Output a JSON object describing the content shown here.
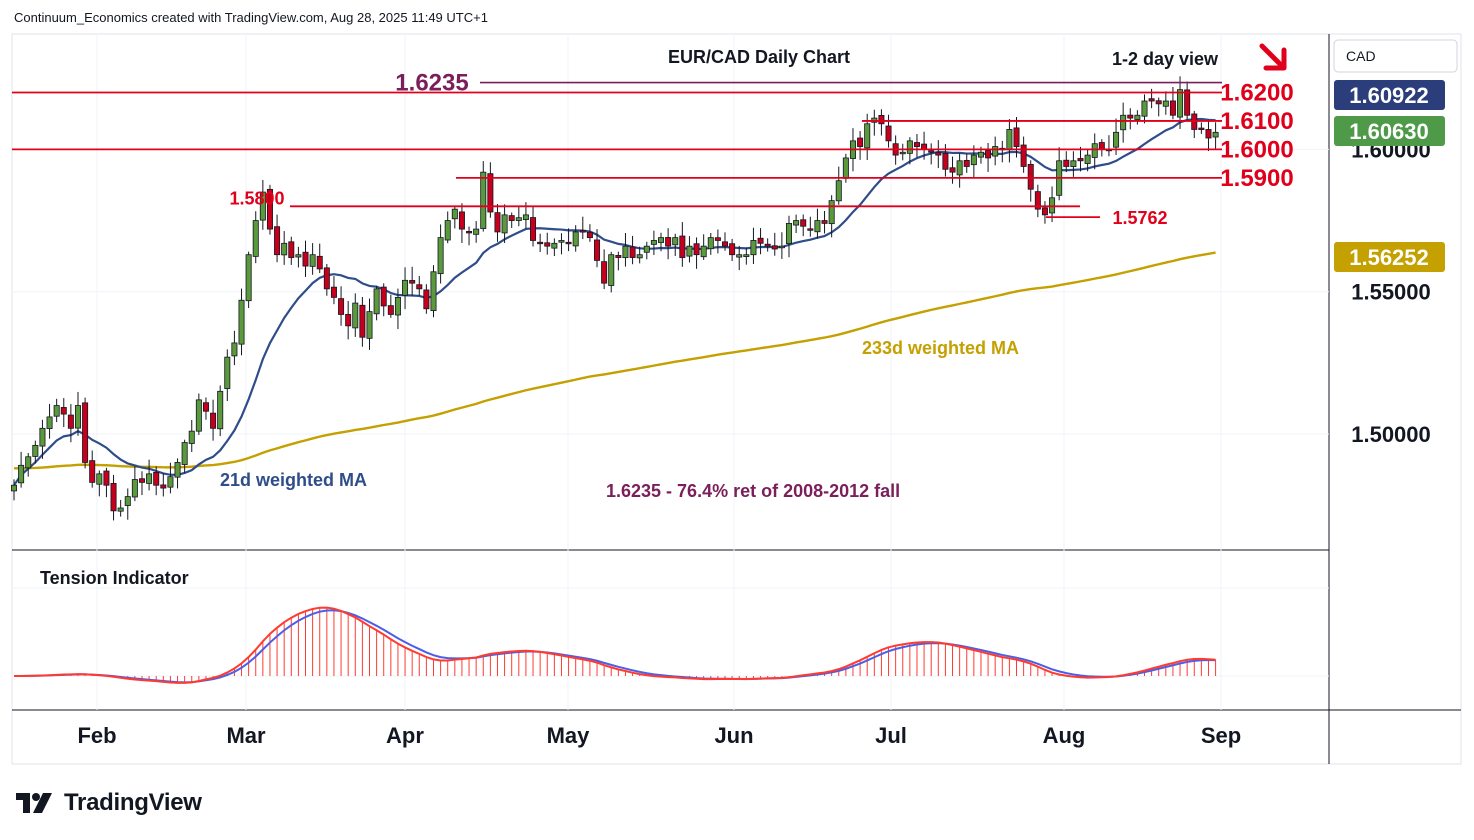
{
  "header": {
    "attribution": "Continuum_Economics created with TradingView.com, Aug 28, 2025 11:49 UTC+1"
  },
  "brand": {
    "name": "TradingView",
    "logo_icon": "tradingview-logo-icon"
  },
  "colors": {
    "candle_up": "#5b9a3c",
    "candle_down": "#c4001d",
    "resistance": "#e0001b",
    "fib": "#7b1f5a",
    "ma21": "#2f4d8a",
    "ma233": "#c4a000",
    "tension_fast": "#ff3b30",
    "tension_slow": "#4a5ee8",
    "price_badge_dark": "#2b3d7a",
    "price_badge_green": "#4e9a48",
    "price_badge_gold": "#c4a000"
  },
  "chart_data": [
    {
      "type": "candlestick",
      "title": "EUR/CAD Daily Chart",
      "subtitle": "1-2 day view",
      "view_arrow": "down-right",
      "currency": "CAD",
      "x_ticks": [
        "Feb",
        "Mar",
        "Apr",
        "May",
        "Jun",
        "Jul",
        "Aug",
        "Sep"
      ],
      "y_ticks": [
        "1.50000",
        "1.55000",
        "1.60000"
      ],
      "ylim": [
        1.46,
        1.64
      ],
      "grid": true,
      "price_labels": {
        "dark": "1.60922",
        "green": "1.60630",
        "gold": "1.56252"
      },
      "levels": [
        {
          "label": "1.6235",
          "value": 1.6235,
          "color": "#7b1f5a"
        },
        {
          "label": "1.6200",
          "value": 1.62,
          "color": "#e0001b"
        },
        {
          "label": "1.6100",
          "value": 1.61,
          "color": "#e0001b"
        },
        {
          "label": "1.6000",
          "value": 1.6,
          "color": "#e0001b"
        },
        {
          "label": "1.5900",
          "value": 1.59,
          "color": "#e0001b"
        },
        {
          "label": "1.5800",
          "value": 1.58,
          "color": "#e0001b"
        },
        {
          "label": "1.5762",
          "value": 1.5762,
          "color": "#e0001b"
        }
      ],
      "annotations": [
        "233d weighted MA",
        "21d weighted MA",
        "1.6235 - 76.4% ret of 2008-2012 fall"
      ],
      "closes": [
        1.482,
        1.489,
        1.492,
        1.496,
        1.502,
        1.506,
        1.51,
        1.507,
        1.502,
        1.51,
        1.49,
        1.483,
        1.486,
        1.482,
        1.473,
        1.474,
        1.478,
        1.484,
        1.483,
        1.486,
        1.482,
        1.481,
        1.485,
        1.49,
        1.497,
        1.501,
        1.512,
        1.508,
        1.502,
        1.515,
        1.527,
        1.532,
        1.547,
        1.563,
        1.575,
        1.585,
        1.572,
        1.563,
        1.567,
        1.562,
        1.563,
        1.559,
        1.563,
        1.558,
        1.551,
        1.548,
        1.542,
        1.538,
        1.546,
        1.534,
        1.543,
        1.551,
        1.545,
        1.542,
        1.548,
        1.554,
        1.553,
        1.551,
        1.544,
        1.557,
        1.569,
        1.575,
        1.579,
        1.572,
        1.571,
        1.572,
        1.592,
        1.578,
        1.571,
        1.577,
        1.575,
        1.576,
        1.577,
        1.568,
        1.567,
        1.566,
        1.567,
        1.568,
        1.567,
        1.571,
        1.571,
        1.569,
        1.561,
        1.553,
        1.563,
        1.562,
        1.566,
        1.562,
        1.563,
        1.566,
        1.568,
        1.569,
        1.566,
        1.569,
        1.562,
        1.566,
        1.563,
        1.566,
        1.569,
        1.568,
        1.566,
        1.563,
        1.563,
        1.563,
        1.568,
        1.567,
        1.566,
        1.565,
        1.566,
        1.574,
        1.575,
        1.573,
        1.572,
        1.575,
        1.574,
        1.582,
        1.589,
        1.597,
        1.603,
        1.601,
        1.609,
        1.611,
        1.609,
        1.603,
        1.598,
        1.599,
        1.603,
        1.601,
        1.6,
        1.599,
        1.598,
        1.593,
        1.592,
        1.596,
        1.594,
        1.598,
        1.599,
        1.597,
        1.601,
        1.6,
        1.607,
        1.601,
        1.594,
        1.586,
        1.579,
        1.577,
        1.583,
        1.596,
        1.594,
        1.596,
        1.596,
        1.598,
        1.602,
        1.6,
        1.6,
        1.606,
        1.612,
        1.611,
        1.612,
        1.617,
        1.617,
        1.616,
        1.617,
        1.612,
        1.621,
        1.612,
        1.607,
        1.607,
        1.604,
        1.606
      ]
    },
    {
      "type": "line",
      "title": "Tension Indicator",
      "ylim": [
        -0.2,
        1.0
      ]
    }
  ]
}
